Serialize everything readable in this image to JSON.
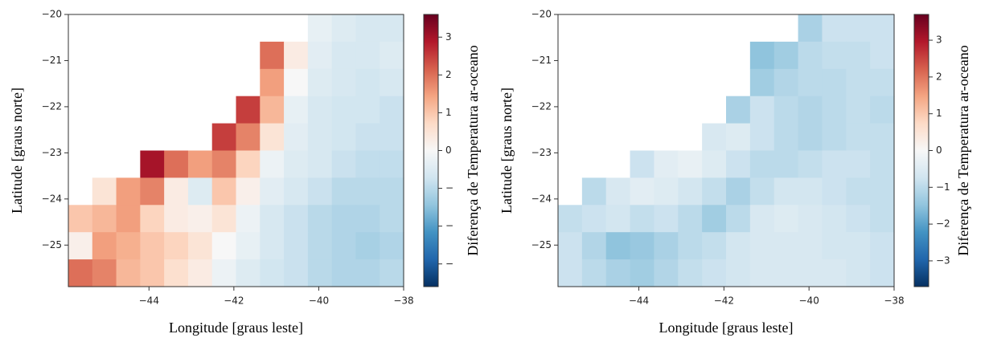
{
  "chart_data": [
    {
      "type": "heatmap",
      "colormap": "RdBu_r",
      "xlabel": "Longitude [graus leste]",
      "ylabel": "Latitude [graus norte]",
      "colorbar_label": "Diferença de Temperatura ar-oceano",
      "xlim": [
        -45.9,
        -38
      ],
      "ylim": [
        -25.9,
        -20
      ],
      "clim": [
        -3.6,
        3.6
      ],
      "xticks": [
        {
          "value": -44,
          "label": "−44"
        },
        {
          "value": -42,
          "label": "−42"
        },
        {
          "value": -40,
          "label": "−40"
        },
        {
          "value": -38,
          "label": "−38"
        }
      ],
      "yticks": [
        {
          "value": -20,
          "label": "−20"
        },
        {
          "value": -21,
          "label": "−21"
        },
        {
          "value": -22,
          "label": "−22"
        },
        {
          "value": -23,
          "label": "−23"
        },
        {
          "value": -24,
          "label": "−24"
        },
        {
          "value": -25,
          "label": "−25"
        }
      ],
      "cticks": [
        3,
        2,
        1,
        0,
        {
          "value": -1,
          "label": "−"
        },
        {
          "value": -2,
          "label": "−"
        },
        {
          "value": -3,
          "label": "−"
        }
      ],
      "z": [
        [
          null,
          null,
          null,
          null,
          null,
          null,
          null,
          null,
          null,
          null,
          -0.3,
          -0.5,
          -0.6,
          -0.6
        ],
        [
          null,
          null,
          null,
          null,
          null,
          null,
          null,
          null,
          2.0,
          0.3,
          -0.4,
          -0.6,
          -0.6,
          -0.5
        ],
        [
          null,
          null,
          null,
          null,
          null,
          null,
          null,
          null,
          1.5,
          0.0,
          -0.5,
          -0.6,
          -0.7,
          -0.6
        ],
        [
          null,
          null,
          null,
          null,
          null,
          null,
          null,
          2.5,
          1.2,
          -0.3,
          -0.6,
          -0.7,
          -0.7,
          -0.8
        ],
        [
          null,
          null,
          null,
          null,
          null,
          null,
          2.5,
          1.8,
          0.5,
          -0.4,
          -0.6,
          -0.7,
          -0.8,
          -0.8
        ],
        [
          null,
          null,
          null,
          3.0,
          2.0,
          1.5,
          1.8,
          0.8,
          -0.2,
          -0.5,
          -0.6,
          -0.8,
          -0.9,
          -0.9
        ],
        [
          null,
          0.5,
          1.5,
          1.8,
          0.3,
          -0.5,
          1.0,
          0.2,
          -0.4,
          -0.6,
          -0.8,
          -1.0,
          -1.0,
          -1.0
        ],
        [
          1.0,
          1.2,
          1.5,
          0.8,
          0.3,
          0.2,
          0.5,
          -0.2,
          -0.6,
          -0.8,
          -1.0,
          -1.1,
          -1.1,
          -1.0
        ],
        [
          0.2,
          1.5,
          1.3,
          1.0,
          0.8,
          0.5,
          0.0,
          -0.3,
          -0.6,
          -0.8,
          -1.0,
          -1.1,
          -1.2,
          -1.1
        ],
        [
          2.0,
          1.8,
          1.2,
          1.0,
          0.6,
          0.3,
          -0.2,
          -0.5,
          -0.7,
          -0.8,
          -1.0,
          -1.1,
          -1.1,
          -1.0
        ]
      ]
    },
    {
      "type": "heatmap",
      "colormap": "RdBu_r",
      "xlabel": "Longitude [graus leste]",
      "ylabel": "Latitude [graus norte]",
      "colorbar_label": "Diferença de Temperatura ar-oceano",
      "xlim": [
        -45.9,
        -38
      ],
      "ylim": [
        -25.9,
        -20
      ],
      "clim": [
        -3.7,
        3.7
      ],
      "xticks": [
        {
          "value": -44,
          "label": "−44"
        },
        {
          "value": -42,
          "label": "−42"
        },
        {
          "value": -40,
          "label": "−40"
        },
        {
          "value": -38,
          "label": "−38"
        }
      ],
      "yticks": [
        {
          "value": -20,
          "label": "−20"
        },
        {
          "value": -21,
          "label": "−21"
        },
        {
          "value": -22,
          "label": "−22"
        },
        {
          "value": -23,
          "label": "−23"
        },
        {
          "value": -24,
          "label": "−24"
        },
        {
          "value": -25,
          "label": "−25"
        }
      ],
      "cticks": [
        3,
        2,
        1,
        0,
        {
          "value": -1,
          "label": "−1"
        },
        {
          "value": -2,
          "label": "−2"
        },
        {
          "value": -3,
          "label": "−3"
        }
      ],
      "z": [
        [
          null,
          null,
          null,
          null,
          null,
          null,
          null,
          null,
          null,
          null,
          -1.2,
          -0.8,
          -0.8,
          -0.8
        ],
        [
          null,
          null,
          null,
          null,
          null,
          null,
          null,
          null,
          -1.5,
          -1.3,
          -1.0,
          -0.9,
          -0.9,
          -0.8
        ],
        [
          null,
          null,
          null,
          null,
          null,
          null,
          null,
          null,
          -1.3,
          -1.1,
          -1.0,
          -1.0,
          -0.9,
          -0.9
        ],
        [
          null,
          null,
          null,
          null,
          null,
          null,
          null,
          -1.2,
          -0.8,
          -1.0,
          -1.1,
          -1.0,
          -0.9,
          -1.0
        ],
        [
          null,
          null,
          null,
          null,
          null,
          null,
          -0.6,
          -0.5,
          -0.8,
          -1.0,
          -1.1,
          -1.0,
          -0.9,
          -0.9
        ],
        [
          null,
          null,
          null,
          -0.8,
          -0.4,
          -0.3,
          -0.5,
          -0.8,
          -1.0,
          -1.0,
          -0.9,
          -0.8,
          -0.8,
          -0.9
        ],
        [
          null,
          -1.0,
          -0.6,
          -0.4,
          -0.5,
          -0.7,
          -0.9,
          -1.2,
          -0.9,
          -0.7,
          -0.7,
          -0.8,
          -0.9,
          -0.9
        ],
        [
          -0.9,
          -0.8,
          -0.7,
          -0.9,
          -0.8,
          -1.0,
          -1.3,
          -1.0,
          -0.6,
          -0.5,
          -0.6,
          -0.7,
          -0.8,
          -0.9
        ],
        [
          -0.8,
          -1.1,
          -1.5,
          -1.4,
          -1.2,
          -1.0,
          -0.9,
          -0.7,
          -0.6,
          -0.6,
          -0.6,
          -0.7,
          -0.7,
          -0.8
        ],
        [
          -0.8,
          -1.0,
          -1.2,
          -1.3,
          -1.1,
          -0.9,
          -0.8,
          -0.7,
          -0.6,
          -0.6,
          -0.6,
          -0.6,
          -0.7,
          -0.8
        ]
      ]
    }
  ]
}
